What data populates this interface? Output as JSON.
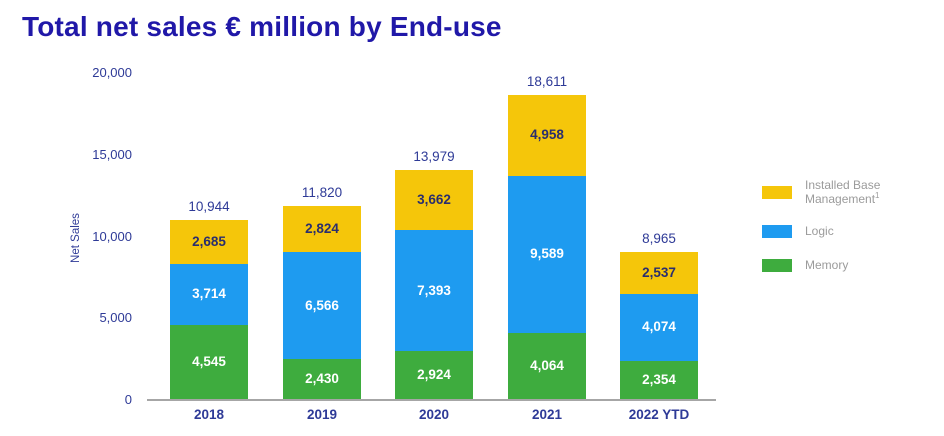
{
  "title": "Total net sales € million by End-use",
  "colors": {
    "title": "#2018A8",
    "axis_text": "#2E3A97",
    "axis_line": "#A6A6A6",
    "legend_text": "#9B9B9B",
    "memory_green": "#3EAC3E",
    "logic_blue": "#1E9BF0",
    "ibm_yellow": "#F5C60A",
    "white_label": "#FFFFFF",
    "dark_label_on_yellow": "#2A2E6E"
  },
  "chart_data": {
    "type": "bar",
    "stacked": true,
    "title": "Total net sales € million by End-use",
    "xlabel": "",
    "ylabel": "Net Sales",
    "ylim": [
      0,
      20000
    ],
    "grid": false,
    "legend_position": "right",
    "yticks": [
      0,
      5000,
      10000,
      15000,
      20000
    ],
    "ytick_labels": [
      "0",
      "5,000",
      "10,000",
      "15,000",
      "20,000"
    ],
    "categories": [
      "2018",
      "2019",
      "2020",
      "2021",
      "2022 YTD"
    ],
    "series": [
      {
        "name": "Memory",
        "color": "#3EAC3E",
        "label_color": "#FFFFFF",
        "values": [
          4545,
          2430,
          2924,
          4064,
          2354
        ],
        "labels": [
          "4,545",
          "2,430",
          "2,924",
          "4,064",
          "2,354"
        ]
      },
      {
        "name": "Logic",
        "color": "#1E9BF0",
        "label_color": "#FFFFFF",
        "values": [
          3714,
          6566,
          7393,
          9589,
          4074
        ],
        "labels": [
          "3,714",
          "6,566",
          "7,393",
          "9,589",
          "4,074"
        ]
      },
      {
        "name": "Installed Base Management",
        "color": "#F5C60A",
        "label_color": "#2A2E6E",
        "values": [
          2685,
          2824,
          3662,
          4958,
          2537
        ],
        "labels": [
          "2,685",
          "2,824",
          "3,662",
          "4,958",
          "2,537"
        ]
      }
    ],
    "totals": [
      10944,
      11820,
      13979,
      18611,
      8965
    ],
    "total_labels": [
      "10,944",
      "11,820",
      "13,979",
      "18,611",
      "8,965"
    ],
    "legend": [
      {
        "label": "Installed Base Management",
        "superscript": "1",
        "color": "#F5C60A"
      },
      {
        "label": "Logic",
        "superscript": "",
        "color": "#1E9BF0"
      },
      {
        "label": "Memory",
        "superscript": "",
        "color": "#3EAC3E"
      }
    ]
  }
}
